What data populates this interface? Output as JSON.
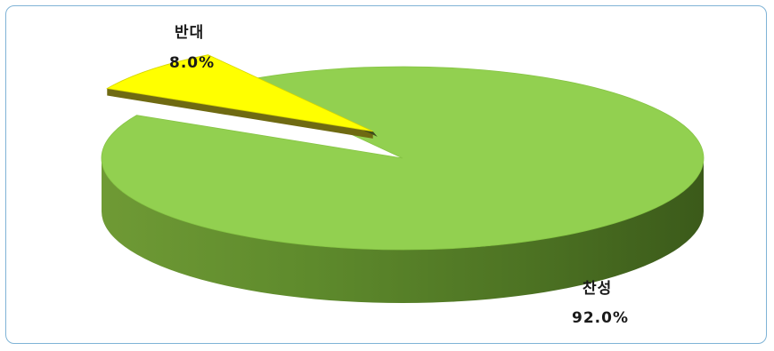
{
  "chart_data": {
    "type": "pie",
    "style": "3d-exploded",
    "categories": [
      "찬성",
      "반대"
    ],
    "values": [
      92.0,
      8.0
    ],
    "labels": [
      {
        "name": "찬성",
        "value_text": "92.0%"
      },
      {
        "name": "반대",
        "value_text": "8.0%"
      }
    ],
    "colors": {
      "찬성": "#92d050",
      "반대": "#ffff00"
    },
    "legend": "none",
    "title": ""
  }
}
